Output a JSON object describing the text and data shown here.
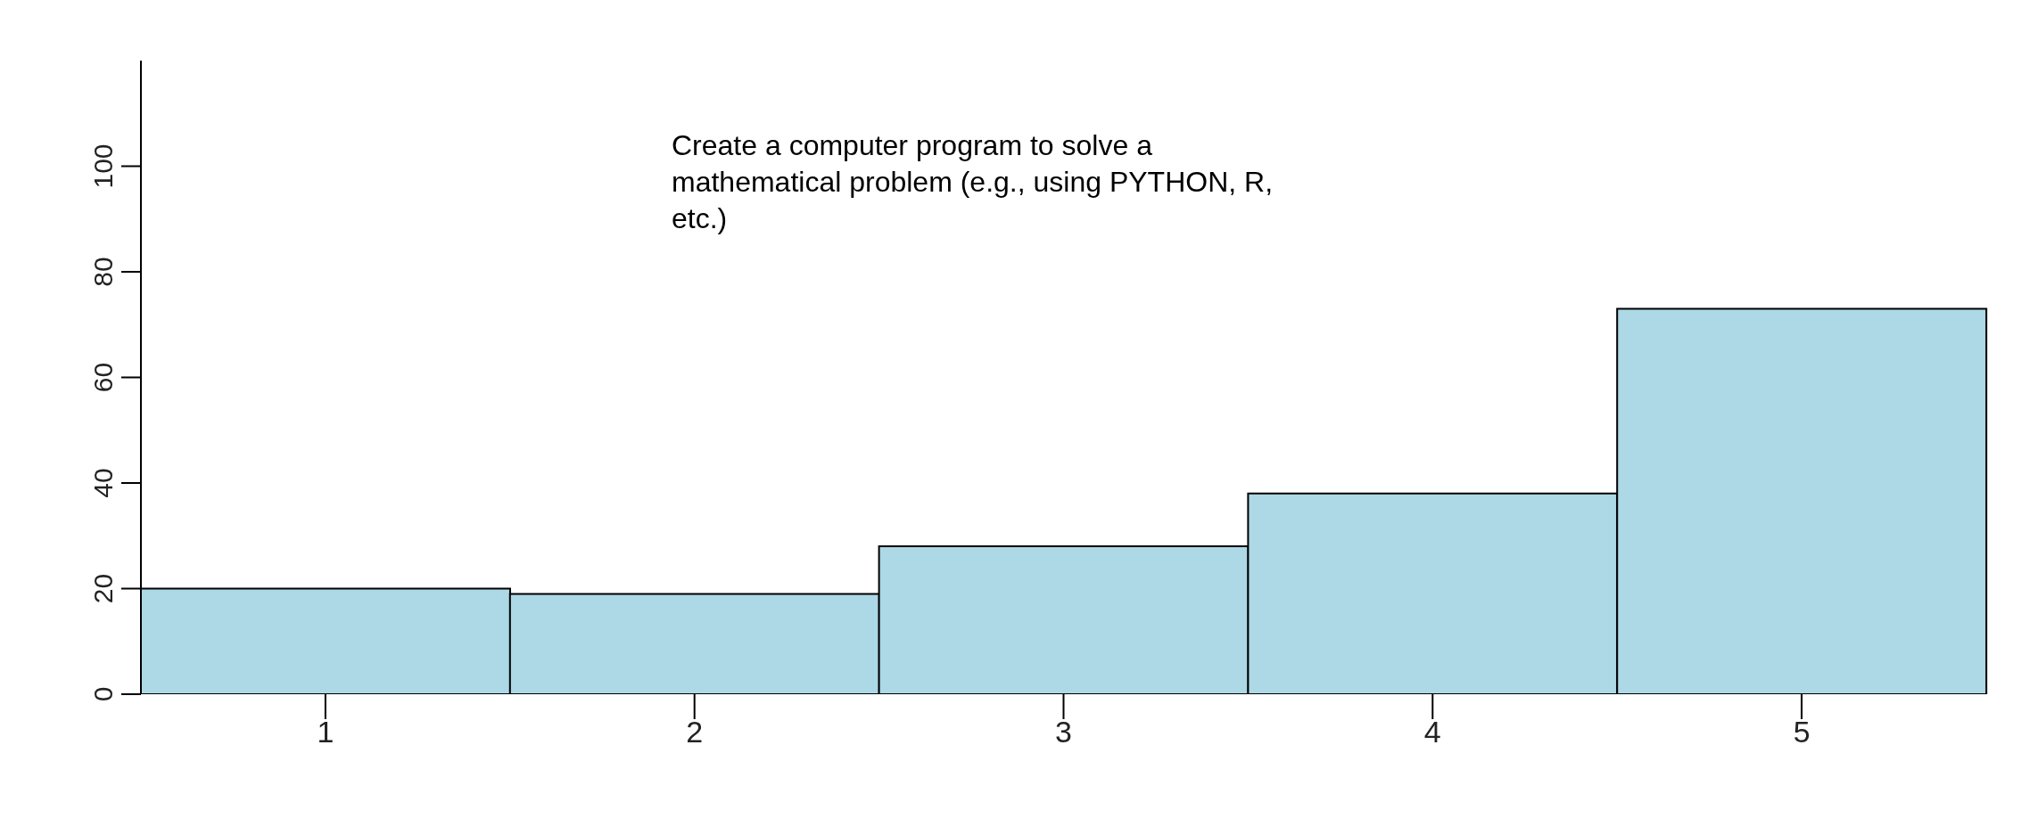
{
  "chart_data": {
    "type": "bar",
    "categories": [
      "1",
      "2",
      "3",
      "4",
      "5"
    ],
    "values": [
      20,
      19,
      28,
      38,
      73
    ],
    "color": "#add8e6",
    "ylim": [
      0,
      120
    ],
    "yticks": [
      0,
      20,
      40,
      60,
      80,
      100
    ],
    "grid": false,
    "legend": false,
    "annotations": [
      "Create a computer program to solve a mathematical problem (e.g., using PYTHON, R, etc.)"
    ]
  }
}
